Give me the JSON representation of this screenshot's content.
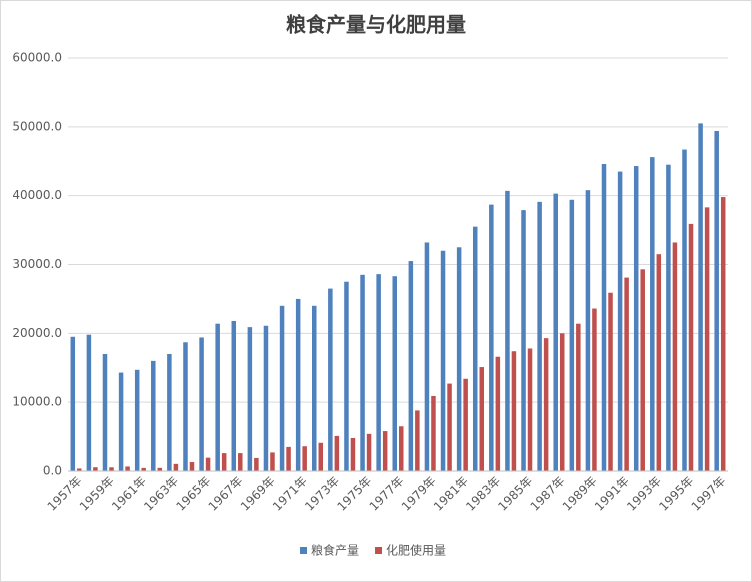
{
  "chart_data": {
    "type": "bar",
    "title": "粮食产量与化肥用量",
    "categories": [
      "1957年",
      null,
      "1959年",
      null,
      "1961年",
      null,
      "1963年",
      null,
      "1965年",
      null,
      "1967年",
      null,
      "1969年",
      null,
      "1971年",
      null,
      "1973年",
      null,
      "1975年",
      null,
      "1977年",
      null,
      "1979年",
      null,
      "1981年",
      null,
      "1983年",
      null,
      "1985年",
      null,
      "1987年",
      null,
      "1989年",
      null,
      "1991年",
      null,
      "1993年",
      null,
      "1995年",
      null,
      "1997年"
    ],
    "series": [
      {
        "name": "粮食产量",
        "color": "#4f81bd",
        "values": [
          19500,
          19800,
          17000,
          14300,
          14700,
          16000,
          17000,
          18700,
          19400,
          21400,
          21800,
          20900,
          21100,
          24000,
          25000,
          24000,
          26500,
          27500,
          28500,
          28600,
          28300,
          30500,
          33200,
          32000,
          32500,
          35500,
          38700,
          40700,
          37900,
          39100,
          40300,
          39400,
          40800,
          44600,
          43500,
          44300,
          45600,
          44500,
          46700,
          50500,
          49400
        ]
      },
      {
        "name": "化肥使用量",
        "color": "#c0504d",
        "values": [
          370,
          550,
          540,
          660,
          450,
          460,
          1040,
          1300,
          1940,
          2600,
          2600,
          1900,
          2700,
          3500,
          3600,
          4100,
          5100,
          4800,
          5400,
          5800,
          6500,
          8800,
          10900,
          12700,
          13400,
          15100,
          16600,
          17400,
          17800,
          19300,
          20000,
          21400,
          23600,
          25900,
          28100,
          29300,
          31500,
          33200,
          35900,
          38300,
          39800
        ]
      }
    ],
    "ylim": [
      0,
      60000
    ],
    "yticks": [
      {
        "value": 0,
        "label": "0.0"
      },
      {
        "value": 10000,
        "label": "10000.0"
      },
      {
        "value": 20000,
        "label": "20000.0"
      },
      {
        "value": 30000,
        "label": "30000.0"
      },
      {
        "value": 40000,
        "label": "40000.0"
      },
      {
        "value": 50000,
        "label": "50000.0"
      },
      {
        "value": 60000,
        "label": "60000.0"
      }
    ],
    "grid": true,
    "legend": "bottom"
  }
}
